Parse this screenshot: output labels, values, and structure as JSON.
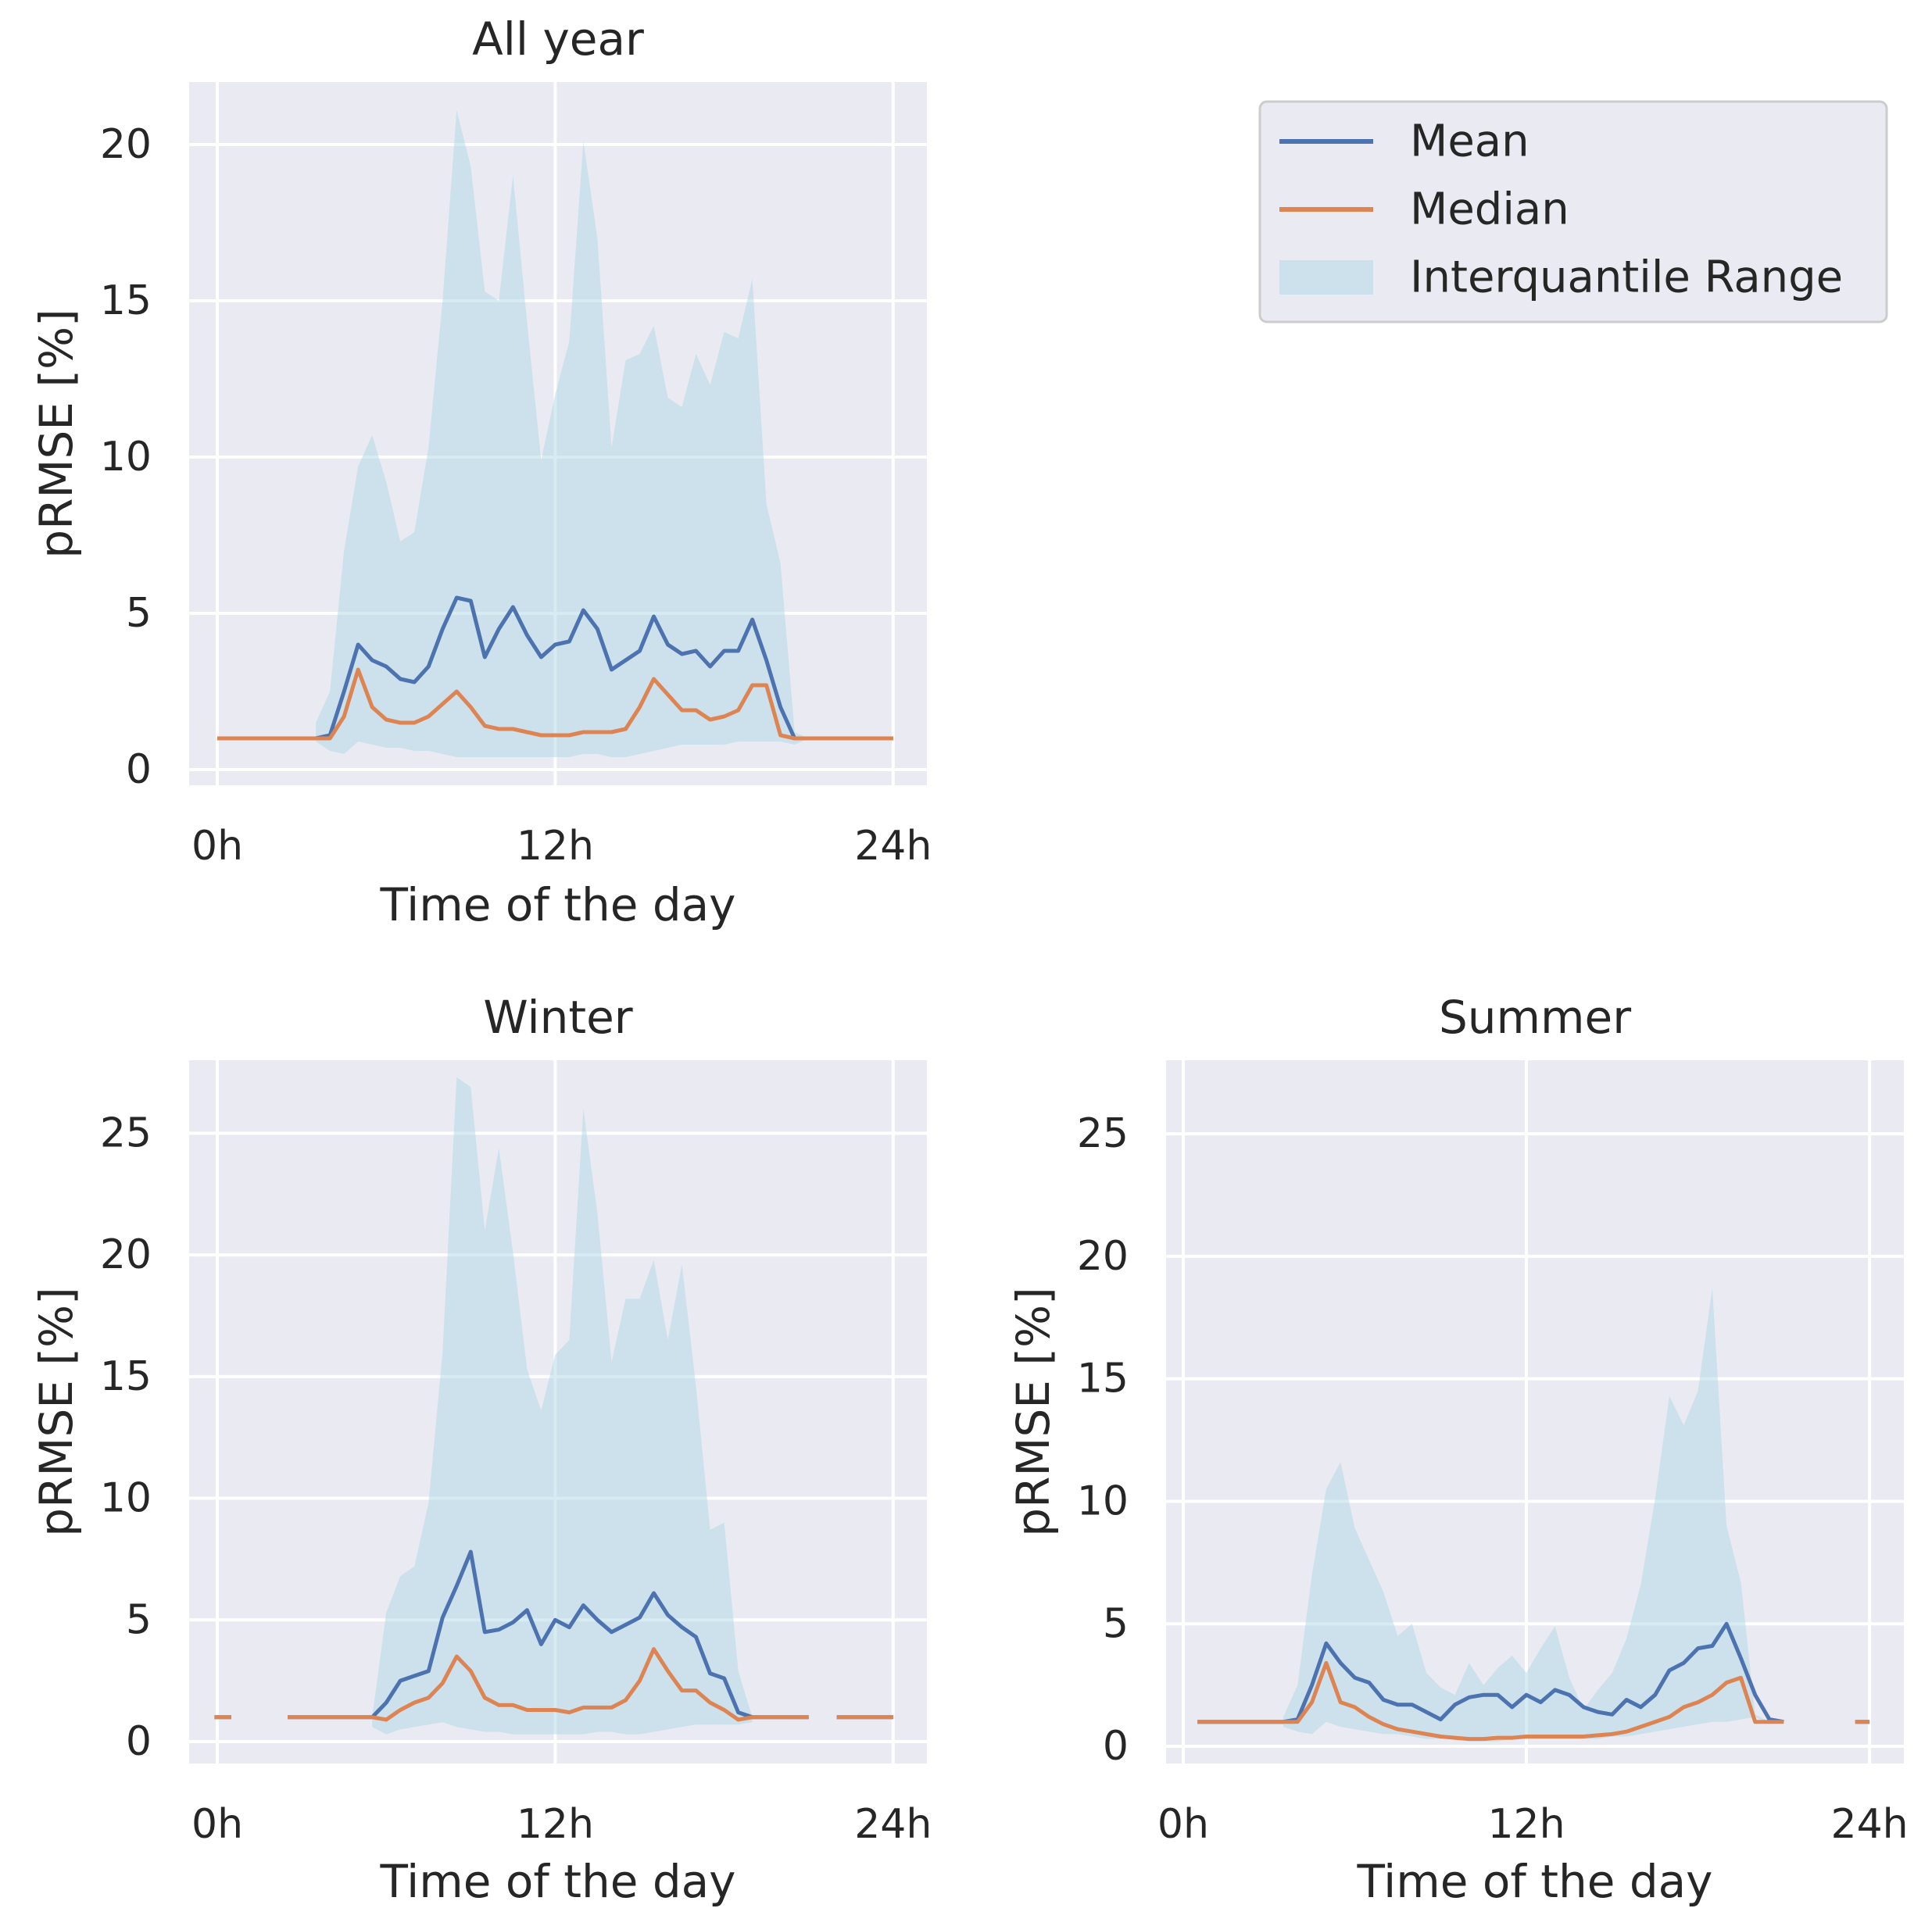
{
  "figure": {
    "legend": {
      "position": "top-right",
      "entries": [
        {
          "label": "Mean",
          "kind": "line",
          "color": "#4c72b0"
        },
        {
          "label": "Median",
          "kind": "line",
          "color": "#dd8452"
        },
        {
          "label": "Interquantile Range",
          "kind": "band",
          "color": "#add8e6"
        }
      ]
    }
  },
  "chart_data": [
    {
      "id": "all-year",
      "type": "line",
      "title": "All year",
      "xlabel": "Time of the day",
      "ylabel": "pRMSE [%]",
      "xlim": [
        -1,
        25.2
      ],
      "ylim": [
        -0.5,
        22
      ],
      "xticks": [
        {
          "value": 0,
          "label": "0h"
        },
        {
          "value": 12,
          "label": "12h"
        },
        {
          "value": 24,
          "label": "24h"
        }
      ],
      "yticks": [
        0,
        5,
        10,
        15,
        20
      ],
      "grid": true,
      "band": {
        "name": "Interquantile Range",
        "x": [
          3.5,
          4.0,
          4.5,
          5.0,
          5.5,
          6.0,
          6.5,
          7.0,
          7.5,
          8.0,
          8.5,
          9.0,
          9.5,
          10.0,
          10.5,
          11.0,
          11.5,
          12.0,
          12.5,
          13.0,
          13.5,
          14.0,
          14.5,
          15.0,
          15.5,
          16.0,
          16.5,
          17.0,
          17.5,
          18.0,
          18.5,
          19.0,
          19.5,
          20.0,
          20.5,
          21.0
        ],
        "lower": [
          0.9,
          0.6,
          0.5,
          0.9,
          0.8,
          0.7,
          0.7,
          0.6,
          0.6,
          0.5,
          0.4,
          0.4,
          0.4,
          0.4,
          0.4,
          0.4,
          0.4,
          0.4,
          0.4,
          0.5,
          0.5,
          0.4,
          0.4,
          0.5,
          0.6,
          0.7,
          0.8,
          0.8,
          0.8,
          0.8,
          0.9,
          0.9,
          0.9,
          0.9,
          0.8,
          1.0
        ],
        "upper": [
          1.5,
          2.5,
          7.0,
          9.7,
          10.7,
          9.2,
          7.3,
          7.6,
          10.3,
          15.0,
          21.1,
          19.3,
          15.3,
          15.0,
          19.0,
          14.3,
          9.9,
          12.0,
          13.7,
          20.1,
          17.0,
          10.3,
          13.1,
          13.3,
          14.2,
          11.9,
          11.6,
          13.3,
          12.3,
          14.0,
          13.8,
          15.7,
          8.5,
          6.6,
          1.2,
          1.0
        ]
      },
      "series": [
        {
          "name": "Mean",
          "x": [
            0,
            0.5,
            1.0,
            1.5,
            2.0,
            2.5,
            3.0,
            3.5,
            4.0,
            4.5,
            5.0,
            5.5,
            6.0,
            6.5,
            7.0,
            7.5,
            8.0,
            8.5,
            9.0,
            9.5,
            10.0,
            10.5,
            11.0,
            11.5,
            12.0,
            12.5,
            13.0,
            13.5,
            14.0,
            14.5,
            15.0,
            15.5,
            16.0,
            16.5,
            17.0,
            17.5,
            18.0,
            18.5,
            19.0,
            19.5,
            20.0,
            20.5,
            21.0,
            21.5,
            22.0,
            22.5,
            23.0,
            23.5,
            24.0
          ],
          "y": [
            1,
            1,
            1,
            1,
            1,
            1,
            1,
            1,
            1.1,
            2.5,
            4.0,
            3.5,
            3.3,
            2.9,
            2.8,
            3.3,
            4.5,
            5.5,
            5.4,
            3.6,
            4.5,
            5.2,
            4.3,
            3.6,
            4.0,
            4.1,
            5.1,
            4.5,
            3.2,
            3.5,
            3.8,
            4.9,
            4.0,
            3.7,
            3.8,
            3.3,
            3.8,
            3.8,
            4.8,
            3.5,
            2.0,
            1.0,
            1,
            1,
            1,
            1,
            1,
            1,
            1
          ]
        },
        {
          "name": "Median",
          "x": [
            0,
            0.5,
            1.0,
            1.5,
            2.0,
            2.5,
            3.0,
            3.5,
            4.0,
            4.5,
            5.0,
            5.5,
            6.0,
            6.5,
            7.0,
            7.5,
            8.0,
            8.5,
            9.0,
            9.5,
            10.0,
            10.5,
            11.0,
            11.5,
            12.0,
            12.5,
            13.0,
            13.5,
            14.0,
            14.5,
            15.0,
            15.5,
            16.0,
            16.5,
            17.0,
            17.5,
            18.0,
            18.5,
            19.0,
            19.5,
            20.0,
            20.5,
            21.0,
            21.5,
            22.0,
            22.5,
            23.0,
            23.5,
            24.0
          ],
          "y": [
            1,
            1,
            1,
            1,
            1,
            1,
            1,
            1,
            1.0,
            1.7,
            3.2,
            2.0,
            1.6,
            1.5,
            1.5,
            1.7,
            2.1,
            2.5,
            2.0,
            1.4,
            1.3,
            1.3,
            1.2,
            1.1,
            1.1,
            1.1,
            1.2,
            1.2,
            1.2,
            1.3,
            2.0,
            2.9,
            2.4,
            1.9,
            1.9,
            1.6,
            1.7,
            1.9,
            2.7,
            2.7,
            1.1,
            1.0,
            1,
            1,
            1,
            1,
            1,
            1,
            1
          ]
        }
      ]
    },
    {
      "id": "winter",
      "type": "line",
      "title": "Winter",
      "xlabel": "Time of the day",
      "ylabel": "pRMSE [%]",
      "xlim": [
        -1,
        25.2
      ],
      "ylim": [
        -0.9,
        28
      ],
      "xticks": [
        {
          "value": 0,
          "label": "0h"
        },
        {
          "value": 12,
          "label": "12h"
        },
        {
          "value": 24,
          "label": "24h"
        }
      ],
      "yticks": [
        0,
        5,
        10,
        15,
        20,
        25
      ],
      "grid": true,
      "band": {
        "name": "Interquantile Range",
        "x": [
          5.5,
          6.0,
          6.5,
          7.0,
          7.5,
          8.0,
          8.5,
          9.0,
          9.5,
          10.0,
          10.5,
          11.0,
          11.5,
          12.0,
          12.5,
          13.0,
          13.5,
          14.0,
          14.5,
          15.0,
          15.5,
          16.0,
          16.5,
          17.0,
          17.5,
          18.0,
          18.5,
          19.0
        ],
        "lower": [
          0.6,
          0.3,
          0.5,
          0.6,
          0.7,
          0.8,
          0.6,
          0.5,
          0.4,
          0.4,
          0.3,
          0.3,
          0.3,
          0.3,
          0.3,
          0.3,
          0.4,
          0.4,
          0.3,
          0.3,
          0.4,
          0.5,
          0.6,
          0.7,
          0.7,
          0.7,
          0.7,
          0.8
        ],
        "upper": [
          1.0,
          5.3,
          6.8,
          7.2,
          9.8,
          16.0,
          27.3,
          26.9,
          21.0,
          24.4,
          20.1,
          15.3,
          13.6,
          15.9,
          16.5,
          26.0,
          21.7,
          15.6,
          18.2,
          18.2,
          19.8,
          16.5,
          19.6,
          14.6,
          8.7,
          9.0,
          2.9,
          1.0
        ]
      },
      "series": [
        {
          "name": "Mean",
          "segments": [
            {
              "x": [
                -0.1,
                0.5
              ],
              "y": [
                1,
                1
              ]
            },
            {
              "x": [
                2.5,
                3.0,
                3.5,
                4.0,
                4.5,
                5.0,
                5.5,
                6.0,
                6.5,
                7.0,
                7.5,
                8.0,
                8.5,
                9.0,
                9.5,
                10.0,
                10.5,
                11.0,
                11.5,
                12.0,
                12.5,
                13.0,
                13.5,
                14.0,
                14.5,
                15.0,
                15.5,
                16.0,
                16.5,
                17.0,
                17.5,
                18.0,
                18.5,
                19.0,
                19.5,
                20.0,
                20.5,
                21.0
              ],
              "y": [
                1,
                1,
                1,
                1,
                1,
                1,
                1.0,
                1.6,
                2.5,
                2.7,
                2.9,
                5.1,
                6.4,
                7.8,
                4.5,
                4.6,
                4.9,
                5.4,
                4.0,
                5.0,
                4.7,
                5.6,
                5.0,
                4.5,
                4.8,
                5.1,
                6.1,
                5.2,
                4.7,
                4.3,
                2.8,
                2.6,
                1.2,
                1.0,
                1,
                1,
                1,
                1
              ]
            },
            {
              "x": [
                22.0,
                22.5,
                23.0,
                23.5,
                24.0
              ],
              "y": [
                1,
                1,
                1,
                1,
                1
              ]
            }
          ]
        },
        {
          "name": "Median",
          "segments": [
            {
              "x": [
                -0.1,
                0.5
              ],
              "y": [
                1,
                1
              ]
            },
            {
              "x": [
                2.5,
                3.0,
                3.5,
                4.0,
                4.5,
                5.0,
                5.5,
                6.0,
                6.5,
                7.0,
                7.5,
                8.0,
                8.5,
                9.0,
                9.5,
                10.0,
                10.5,
                11.0,
                11.5,
                12.0,
                12.5,
                13.0,
                13.5,
                14.0,
                14.5,
                15.0,
                15.5,
                16.0,
                16.5,
                17.0,
                17.5,
                18.0,
                18.5,
                19.0,
                19.5,
                20.0,
                20.5,
                21.0
              ],
              "y": [
                1,
                1,
                1,
                1,
                1,
                1,
                1.0,
                0.9,
                1.3,
                1.6,
                1.8,
                2.4,
                3.5,
                2.9,
                1.8,
                1.5,
                1.5,
                1.3,
                1.3,
                1.3,
                1.2,
                1.4,
                1.4,
                1.4,
                1.7,
                2.5,
                3.8,
                2.9,
                2.1,
                2.1,
                1.6,
                1.3,
                0.9,
                1.0,
                1,
                1,
                1,
                1
              ]
            },
            {
              "x": [
                22.0,
                22.5,
                23.0,
                23.5,
                24.0
              ],
              "y": [
                1,
                1,
                1,
                1,
                1
              ]
            }
          ]
        }
      ]
    },
    {
      "id": "summer",
      "type": "line",
      "title": "Summer",
      "xlabel": "Time of the day",
      "ylabel": "pRMSE [%]",
      "xlim": [
        -0.6,
        25.2
      ],
      "ylim": [
        -0.7,
        28
      ],
      "xticks": [
        {
          "value": 0,
          "label": "0h"
        },
        {
          "value": 12,
          "label": "12h"
        },
        {
          "value": 24,
          "label": "24h"
        }
      ],
      "yticks": [
        0,
        5,
        10,
        15,
        20,
        25
      ],
      "grid": true,
      "band": {
        "name": "Interquantile Range",
        "x": [
          3.5,
          4.0,
          4.5,
          5.0,
          5.5,
          6.0,
          6.5,
          7.0,
          7.5,
          8.0,
          8.5,
          9.0,
          9.5,
          10.0,
          10.5,
          11.0,
          11.5,
          12.0,
          12.5,
          13.0,
          13.5,
          14.0,
          14.5,
          15.0,
          15.5,
          16.0,
          16.5,
          17.0,
          17.5,
          18.0,
          18.5,
          19.0,
          19.5,
          20.0,
          20.5,
          21.0
        ],
        "lower": [
          0.8,
          0.6,
          0.5,
          1.0,
          0.8,
          0.7,
          0.6,
          0.5,
          0.5,
          0.4,
          0.3,
          0.3,
          0.3,
          0.2,
          0.2,
          0.2,
          0.3,
          0.3,
          0.3,
          0.3,
          0.3,
          0.3,
          0.3,
          0.4,
          0.4,
          0.5,
          0.6,
          0.7,
          0.8,
          0.9,
          1.0,
          1.0,
          1.1,
          1.2,
          0.9,
          1.0
        ],
        "upper": [
          1.2,
          2.5,
          7.0,
          10.5,
          11.6,
          8.9,
          7.6,
          6.3,
          4.5,
          5.0,
          3.0,
          2.4,
          2.1,
          3.4,
          2.5,
          3.2,
          3.7,
          3.0,
          4.0,
          4.9,
          2.8,
          1.5,
          2.3,
          3.0,
          4.4,
          6.6,
          10.1,
          14.3,
          13.1,
          14.5,
          18.7,
          9.0,
          6.7,
          1.3,
          1.0,
          1.0
        ]
      },
      "series": [
        {
          "name": "Mean",
          "segments": [
            {
              "x": [
                0.5,
                1.0,
                1.5,
                2.0,
                2.5,
                3.0,
                3.5,
                4.0,
                4.5,
                5.0,
                5.5,
                6.0,
                6.5,
                7.0,
                7.5,
                8.0,
                8.5,
                9.0,
                9.5,
                10.0,
                10.5,
                11.0,
                11.5,
                12.0,
                12.5,
                13.0,
                13.5,
                14.0,
                14.5,
                15.0,
                15.5,
                16.0,
                16.5,
                17.0,
                17.5,
                18.0,
                18.5,
                19.0,
                19.5,
                20.0,
                20.5,
                21.0
              ],
              "y": [
                1,
                1,
                1,
                1,
                1,
                1,
                1,
                1.1,
                2.5,
                4.2,
                3.4,
                2.8,
                2.6,
                1.9,
                1.7,
                1.7,
                1.4,
                1.1,
                1.7,
                2.0,
                2.1,
                2.1,
                1.6,
                2.1,
                1.8,
                2.3,
                2.1,
                1.6,
                1.4,
                1.3,
                1.9,
                1.6,
                2.1,
                3.1,
                3.4,
                4.0,
                4.1,
                5.0,
                3.6,
                2.1,
                1.1,
                1.0
              ]
            },
            {
              "x": [
                23.5,
                24.0
              ],
              "y": [
                1,
                1
              ]
            }
          ]
        },
        {
          "name": "Median",
          "segments": [
            {
              "x": [
                0.5,
                1.0,
                1.5,
                2.0,
                2.5,
                3.0,
                3.5,
                4.0,
                4.5,
                5.0,
                5.5,
                6.0,
                6.5,
                7.0,
                7.5,
                8.0,
                8.5,
                9.0,
                9.5,
                10.0,
                10.5,
                11.0,
                11.5,
                12.0,
                12.5,
                13.0,
                13.5,
                14.0,
                14.5,
                15.0,
                15.5,
                16.0,
                16.5,
                17.0,
                17.5,
                18.0,
                18.5,
                19.0,
                19.5,
                20.0,
                20.5,
                21.0
              ],
              "y": [
                1,
                1,
                1,
                1,
                1,
                1,
                1,
                1.0,
                1.8,
                3.4,
                1.8,
                1.6,
                1.2,
                0.9,
                0.7,
                0.6,
                0.5,
                0.4,
                0.35,
                0.3,
                0.3,
                0.35,
                0.35,
                0.4,
                0.4,
                0.4,
                0.4,
                0.4,
                0.45,
                0.5,
                0.6,
                0.8,
                1.0,
                1.2,
                1.6,
                1.8,
                2.1,
                2.6,
                2.8,
                1.0,
                1.0,
                1.0
              ]
            },
            {
              "x": [
                23.5,
                24.0
              ],
              "y": [
                1,
                1
              ]
            }
          ]
        }
      ]
    }
  ]
}
